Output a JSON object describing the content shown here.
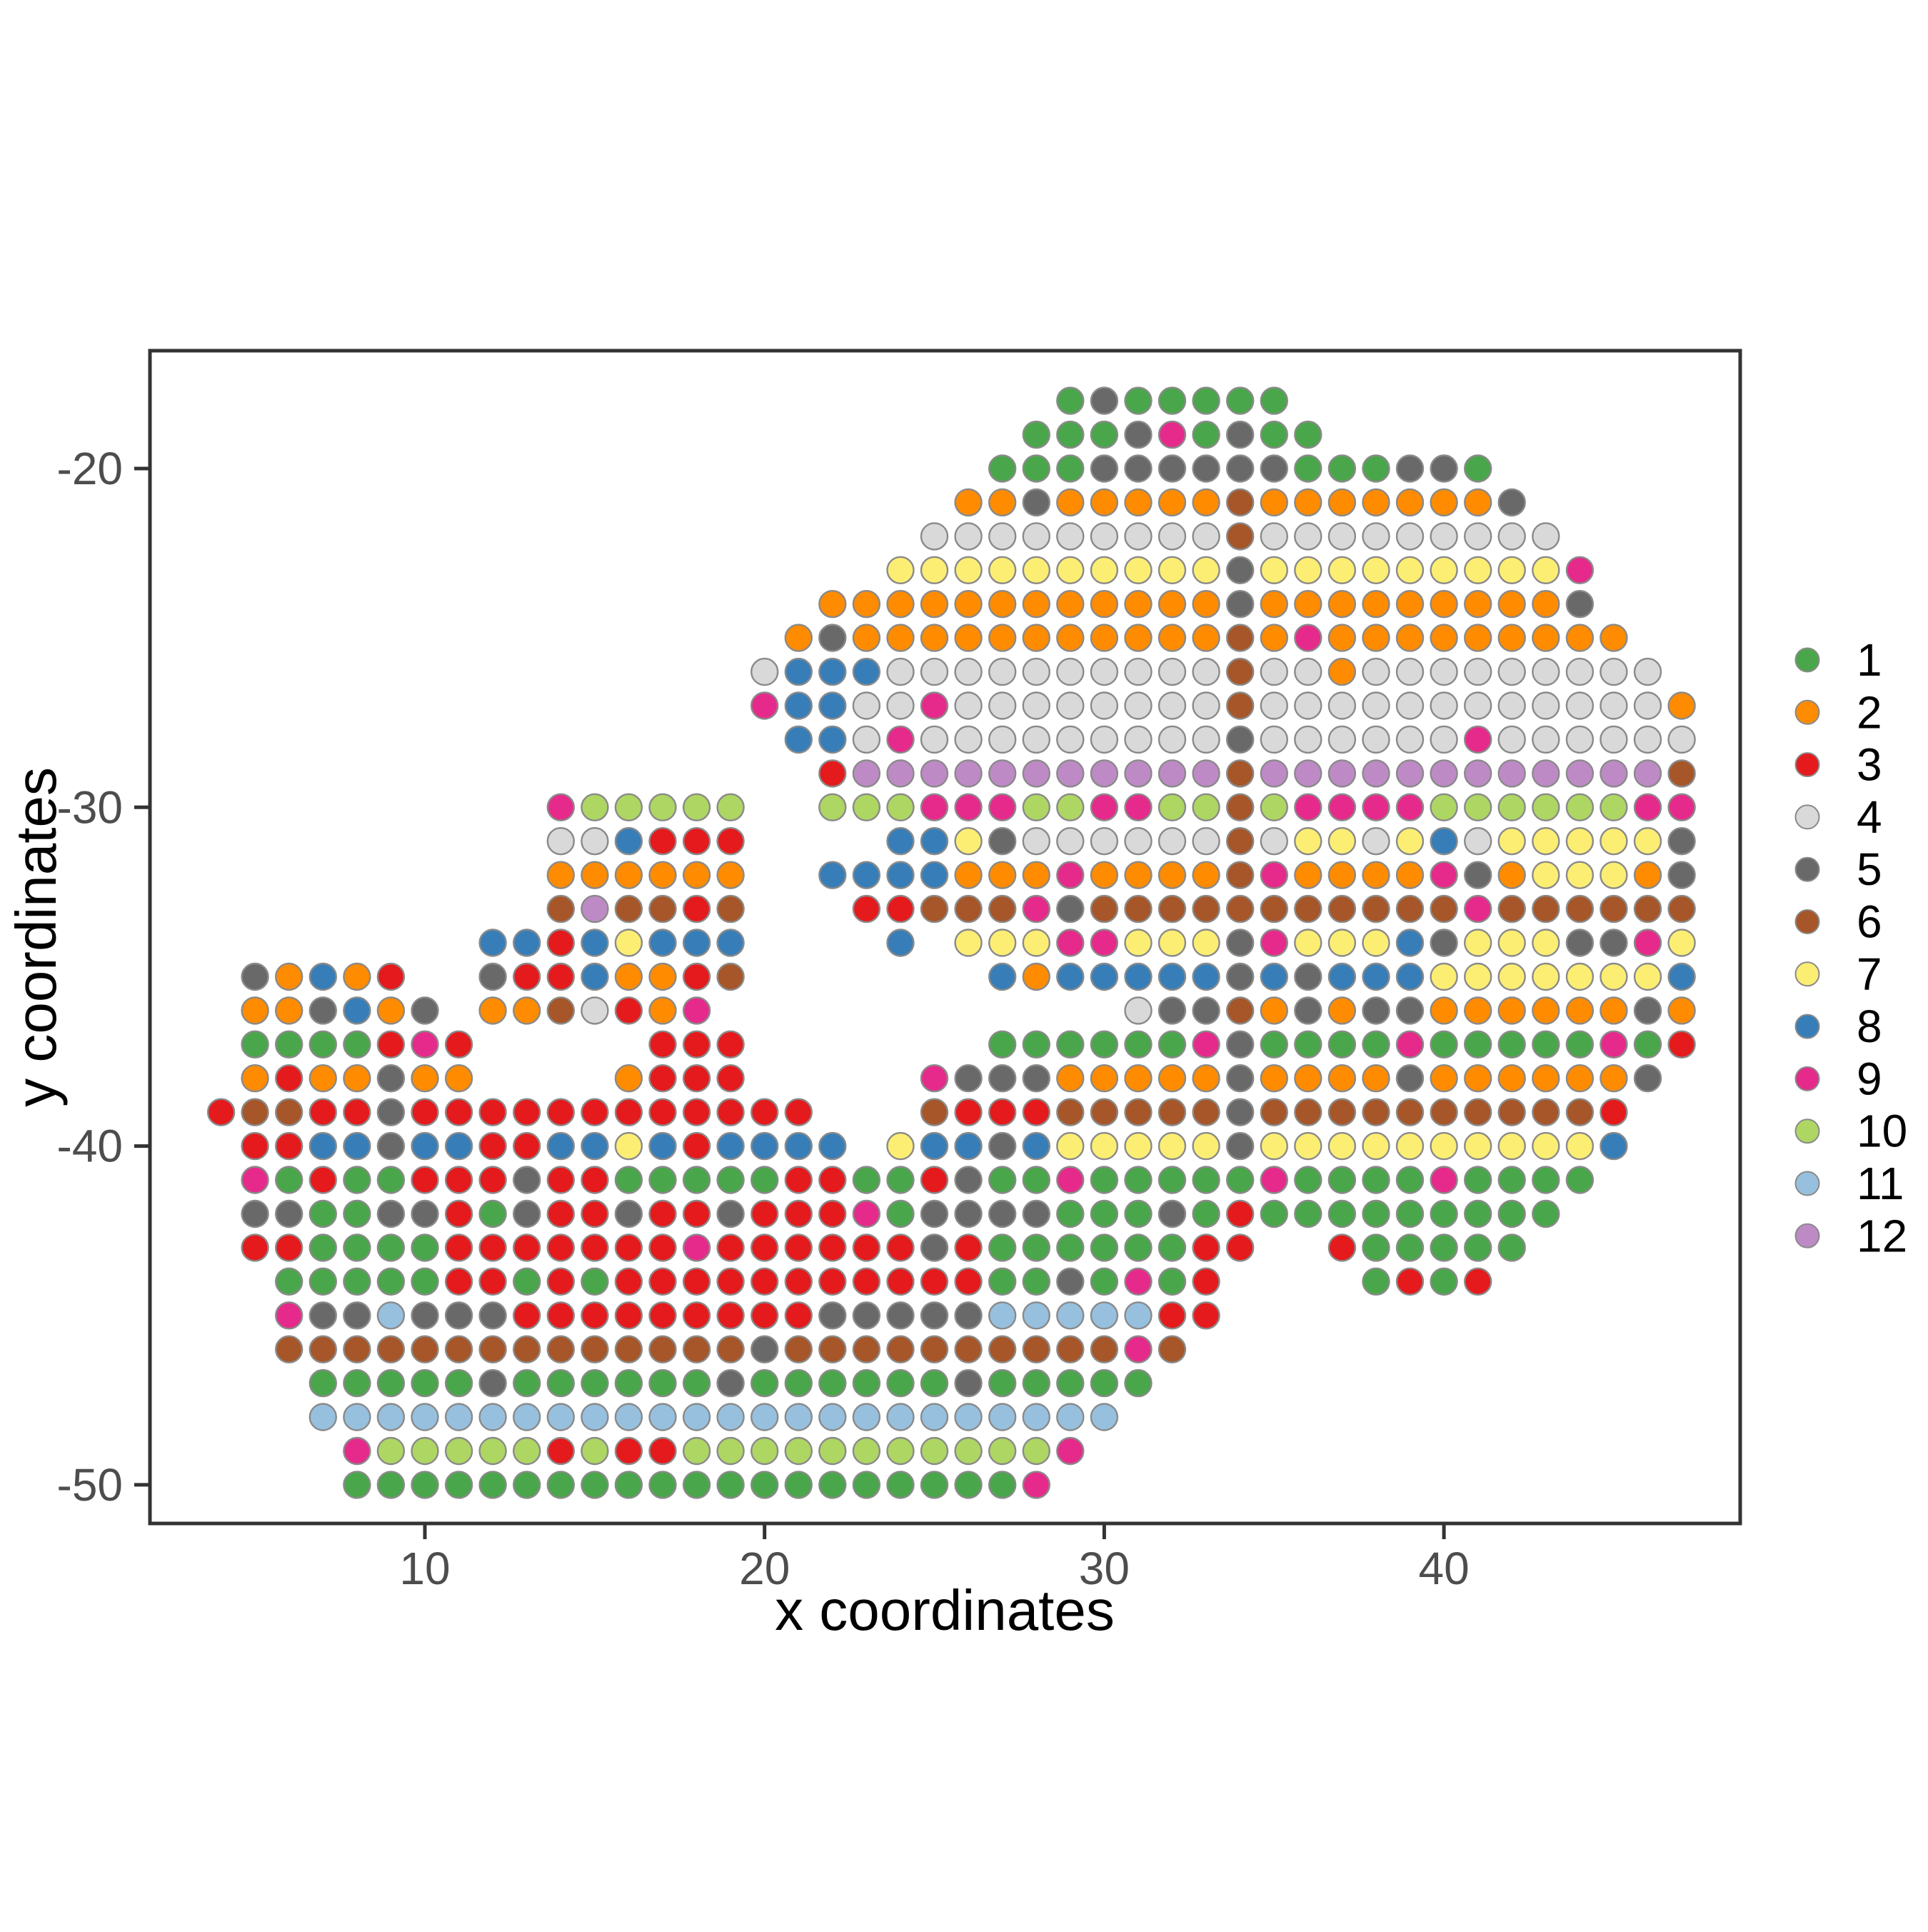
{
  "chart_data": {
    "type": "scatter",
    "title": "",
    "xlabel": "x coordinates",
    "ylabel": "y coordinates",
    "x_ticks": [
      10,
      20,
      30,
      40
    ],
    "y_ticks": [
      -20,
      -30,
      -40,
      -50
    ],
    "x_domain": [
      1.9,
      48.8
    ],
    "y_domain": [
      -51.2,
      -16.4
    ],
    "grid": "off",
    "legend_position": "right",
    "point_radius_data_units": 0.39,
    "colors": {
      "background": "#ffffff",
      "panel_border": "#333333",
      "tick_mark": "#333333",
      "tick_label": "#4d4d4d",
      "axis_title": "#000000",
      "legend_label": "#000000",
      "point_stroke": "#8a8a8a"
    },
    "clusters": [
      {
        "label": "1",
        "color": "#4aa64a"
      },
      {
        "label": "2",
        "color": "#fe8b00"
      },
      {
        "label": "3",
        "color": "#e41a1c"
      },
      {
        "label": "4",
        "color": "#d9d9d9"
      },
      {
        "label": "5",
        "color": "#696969"
      },
      {
        "label": "6",
        "color": "#a65628"
      },
      {
        "label": "7",
        "color": "#fcee73"
      },
      {
        "label": "8",
        "color": "#377eb8"
      },
      {
        "label": "9",
        "color": "#e62a8b"
      },
      {
        "label": "10",
        "color": "#aed663"
      },
      {
        "label": "11",
        "color": "#97c0de"
      },
      {
        "label": "12",
        "color": "#be8ac6"
      }
    ],
    "code_map": {
      "1": "1",
      "2": "2",
      "3": "3",
      "4": "4",
      "5": "5",
      "6": "6",
      "7": "7",
      "8": "8",
      "9": "9",
      "A": "10",
      "B": "11",
      "C": "12"
    },
    "points_grid": {
      "x_start": 4,
      "note": "each row string spans x=4..47; char = cluster code, '.' = no point",
      "rows": [
        {
          "y": -18,
          "cells": ".........................1511111............"
        },
        {
          "y": -19,
          "cells": "........................111591511..........."
        },
        {
          "y": -20,
          "cells": ".......................111555555111551......"
        },
        {
          "y": -21,
          "cells": "......................22522222622222225....."
        },
        {
          "y": -22,
          "cells": ".....................4444444446444444444...."
        },
        {
          "y": -23,
          "cells": "....................777777777757777777779..."
        },
        {
          "y": -24,
          "cells": "..................22222222222252222222225..."
        },
        {
          "y": -25,
          "cells": ".................2522222222222629222222222.."
        },
        {
          "y": -26,
          "cells": "................488844444444446442444444444."
        },
        {
          "y": -27,
          "cells": "................9884494444444464444444444442"
        },
        {
          "y": -28,
          "cells": ".................884944444444454444449444444"
        },
        {
          "y": -29,
          "cells": "..................3CCCCCCCCCCC6CCCCCCCCCCCC6"
        },
        {
          "y": -30,
          "cells": "..........9AAAAA..AAA999AA99AA6A9999AAAAAA99"
        },
        {
          "y": -31,
          "cells": "..........448333....887544444464774784777775"
        },
        {
          "y": -32,
          "cells": "..........222222..88882229222269222295277725"
        },
        {
          "y": -33,
          "cells": "..........6C6636...3366695666666666669666666"
        },
        {
          "y": -34,
          "cells": "........88387888....8.7779977759777857775597"
        },
        {
          "y": -35,
          "cells": ".52823..53382236.......828888858588877777778"
        },
        {
          "y": -36,
          "cells": ".225825.2264329............45562525522222252"
        },
        {
          "y": -37,
          "cells": ".1111393.....333.......111111951111911111913"
        },
        {
          "y": -38,
          "cells": ".2322522....2333.....9555222225222252222225."
        },
        {
          "y": -39,
          "cells": "366335333333333333...633366666566666666663.."
        },
        {
          "y": -40,
          "cells": ".338858833887838888.7885877777577777777778.."
        },
        {
          "y": -41,
          "cells": ".9131133353311111331135119111119111191111..."
        },
        {
          "y": -42,
          "cells": ".551155315335335333915555111513111111111...."
        },
        {
          "y": -43,
          "cells": ".331111333333393333335311111133..311111....."
        },
        {
          "y": -44,
          "cells": "..1111133131333333333331151913....1313......"
        },
        {
          "y": -45,
          "cells": "..955B55533333333355555BBBBB33.............."
        },
        {
          "y": -46,
          "cells": "..666666666666665666666666696..............."
        },
        {
          "y": -47,
          "cells": "...1111151111115111111511111................"
        },
        {
          "y": -48,
          "cells": "...BBBBBBBBBBBBBBBBBBBBBBBB................."
        },
        {
          "y": -49,
          "cells": "....9AAAAA3A33AAAAAAAAAAA9.................."
        },
        {
          "y": -50,
          "cells": "....111111111111111111119..................."
        }
      ]
    }
  }
}
